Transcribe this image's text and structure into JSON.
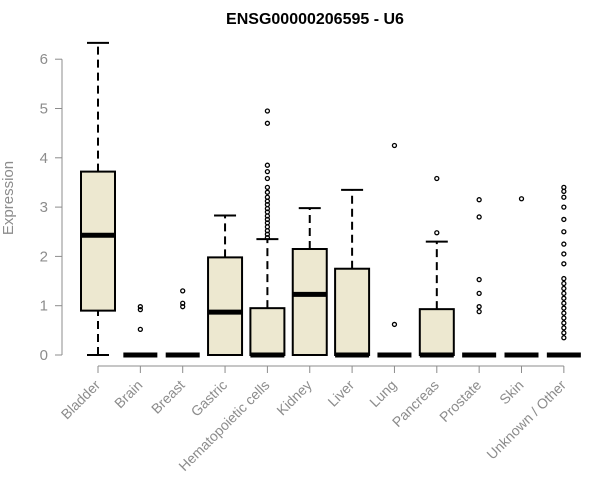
{
  "chart_data": {
    "type": "box",
    "title": "ENSG00000206595 - U6",
    "xlabel": "",
    "ylabel": "Expression",
    "ylim": [
      0,
      6.3
    ],
    "yticks": [
      0,
      1,
      2,
      3,
      4,
      5,
      6
    ],
    "grid": false,
    "colors": {
      "box_fill": "#ede8d0",
      "stroke": "#000000",
      "axis_text": "#8c8c8c"
    },
    "categories": [
      "Bladder",
      "Brain",
      "Breast",
      "Gastric",
      "Hematopoietic cells",
      "Kidney",
      "Liver",
      "Lung",
      "Pancreas",
      "Prostate",
      "Skin",
      "Unknown / Other"
    ],
    "boxes": [
      {
        "category": "Bladder",
        "whisker_low": 0,
        "q1": 0.9,
        "median": 2.43,
        "q3": 3.72,
        "whisker_high": 6.33,
        "outliers": []
      },
      {
        "category": "Brain",
        "whisker_low": 0,
        "q1": 0,
        "median": 0,
        "q3": 0,
        "whisker_high": 0,
        "outliers": [
          0.52,
          0.92,
          0.98
        ]
      },
      {
        "category": "Breast",
        "whisker_low": 0,
        "q1": 0,
        "median": 0,
        "q3": 0,
        "whisker_high": 0,
        "outliers": [
          0.98,
          1.05,
          1.3
        ]
      },
      {
        "category": "Gastric",
        "whisker_low": 0,
        "q1": 0,
        "median": 0.87,
        "q3": 1.98,
        "whisker_high": 2.83,
        "outliers": []
      },
      {
        "category": "Hematopoietic cells",
        "whisker_low": 0,
        "q1": 0,
        "median": 0,
        "q3": 0.95,
        "whisker_high": 2.35,
        "outliers": [
          2.38,
          2.45,
          2.52,
          2.6,
          2.68,
          2.75,
          2.82,
          2.9,
          2.97,
          3.05,
          3.12,
          3.2,
          3.3,
          3.4,
          3.58,
          3.72,
          3.85,
          4.7,
          4.95
        ]
      },
      {
        "category": "Kidney",
        "whisker_low": 0,
        "q1": 0,
        "median": 1.23,
        "q3": 2.15,
        "whisker_high": 2.98,
        "outliers": []
      },
      {
        "category": "Liver",
        "whisker_low": 0,
        "q1": 0,
        "median": 0,
        "q3": 1.75,
        "whisker_high": 3.35,
        "outliers": []
      },
      {
        "category": "Lung",
        "whisker_low": 0,
        "q1": 0,
        "median": 0,
        "q3": 0,
        "whisker_high": 0,
        "outliers": [
          0.62,
          4.25
        ]
      },
      {
        "category": "Pancreas",
        "whisker_low": 0,
        "q1": 0,
        "median": 0,
        "q3": 0.93,
        "whisker_high": 2.3,
        "outliers": [
          2.48,
          3.58
        ]
      },
      {
        "category": "Prostate",
        "whisker_low": 0,
        "q1": 0,
        "median": 0,
        "q3": 0,
        "whisker_high": 0,
        "outliers": [
          0.88,
          0.98,
          1.25,
          1.53,
          2.8,
          3.15
        ]
      },
      {
        "category": "Skin",
        "whisker_low": 0,
        "q1": 0,
        "median": 0,
        "q3": 0,
        "whisker_high": 0,
        "outliers": [
          3.17
        ]
      },
      {
        "category": "Unknown / Other",
        "whisker_low": 0,
        "q1": 0,
        "median": 0,
        "q3": 0,
        "whisker_high": 0,
        "outliers": [
          0.35,
          0.45,
          0.55,
          0.65,
          0.75,
          0.85,
          0.95,
          1.05,
          1.15,
          1.25,
          1.35,
          1.45,
          1.55,
          1.85,
          2.05,
          2.25,
          2.5,
          2.75,
          3.0,
          3.2,
          3.32,
          3.4
        ]
      }
    ]
  }
}
